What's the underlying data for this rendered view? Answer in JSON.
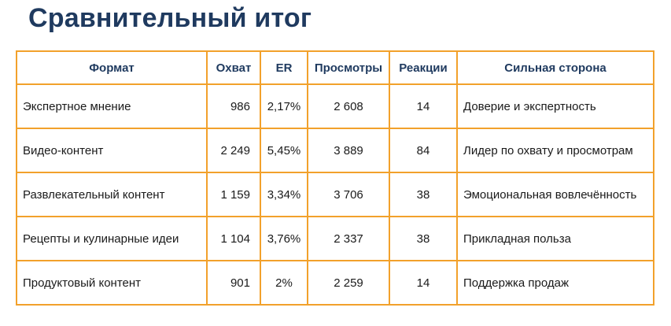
{
  "title": "Сравнительный итог",
  "table": {
    "headers": [
      "Формат",
      "Охват",
      "ER",
      "Просмотры",
      "Реакции",
      "Сильная сторона"
    ],
    "rows": [
      [
        "Экспертное мнение",
        "986",
        "2,17%",
        "2 608",
        "14",
        "Доверие и экспертность"
      ],
      [
        "Видео-контент",
        "2 249",
        "5,45%",
        "3 889",
        "84",
        "Лидер по охвату и просмотрам"
      ],
      [
        "Развлекательный контент",
        "1 159",
        "3,34%",
        "3 706",
        "38",
        "Эмоциональная вовлечённость"
      ],
      [
        "Рецепты и кулинарные идеи",
        "1 104",
        "3,76%",
        "2 337",
        "38",
        "Прикладная польза"
      ],
      [
        "Продуктовый контент",
        "901",
        "2%",
        "2 259",
        "14",
        "Поддержка продаж"
      ]
    ]
  },
  "colors": {
    "title": "#1f3a5f",
    "border": "#f2a12b",
    "header_text": "#1f3a5f"
  }
}
